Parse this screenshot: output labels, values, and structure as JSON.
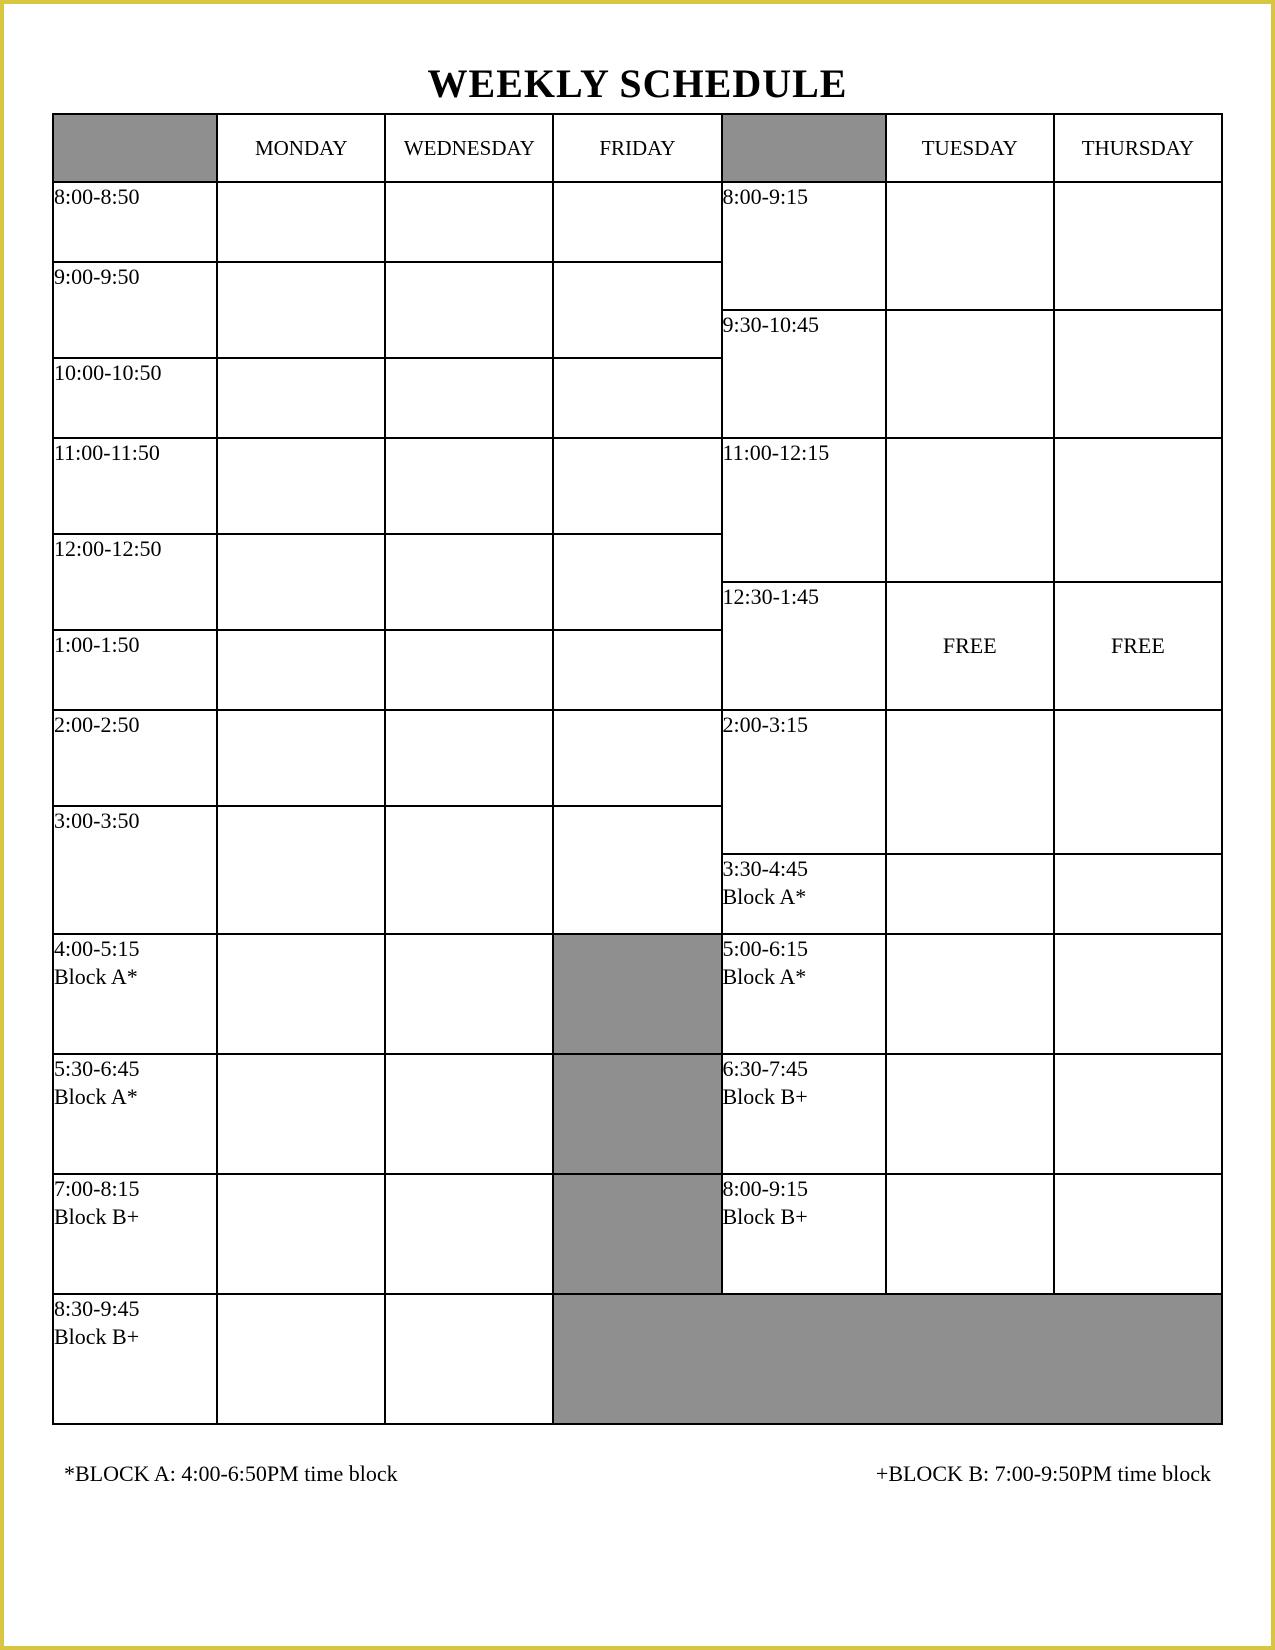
{
  "title": "WEEKLY SCHEDULE",
  "colors": {
    "page_border": "#d8c642",
    "cell_border": "#000000",
    "shade": "#8f8f8f",
    "background": "#ffffff",
    "text": "#000000"
  },
  "typography": {
    "family": "Times New Roman",
    "title_size_pt": 30,
    "header_size_pt": 16,
    "body_size_pt": 16
  },
  "header": {
    "mwf": [
      "MONDAY",
      "WEDNESDAY",
      "FRIDAY"
    ],
    "tth": [
      "TUESDAY",
      "THURSDAY"
    ]
  },
  "left_times": [
    "8:00-8:50",
    "9:00-9:50",
    "10:00-10:50",
    "11:00-11:50",
    "12:00-12:50",
    "1:00-1:50",
    "2:00-2:50",
    "3:00-3:50",
    "4:00-5:15\nBlock A*",
    "5:30-6:45\nBlock A*",
    "7:00-8:15\nBlock B+",
    "8:30-9:45\nBlock B+"
  ],
  "right_times": [
    "8:00-9:15",
    "9:30-10:45",
    "11:00-12:15",
    "12:30-1:45",
    "2:00-3:15",
    "3:30-4:45\nBlock A*",
    "5:00-6:15\nBlock A*",
    "6:30-7:45\nBlock B+",
    "8:00-9:15\nBlock B+"
  ],
  "right_cells": {
    "row3": {
      "tuesday": "FREE",
      "thursday": "FREE"
    }
  },
  "left_friday_shaded_rows": [
    8,
    9,
    10
  ],
  "footnotes": {
    "blockA": "*BLOCK A:  4:00-6:50PM time block",
    "blockB": "+BLOCK B:  7:00-9:50PM time block"
  }
}
